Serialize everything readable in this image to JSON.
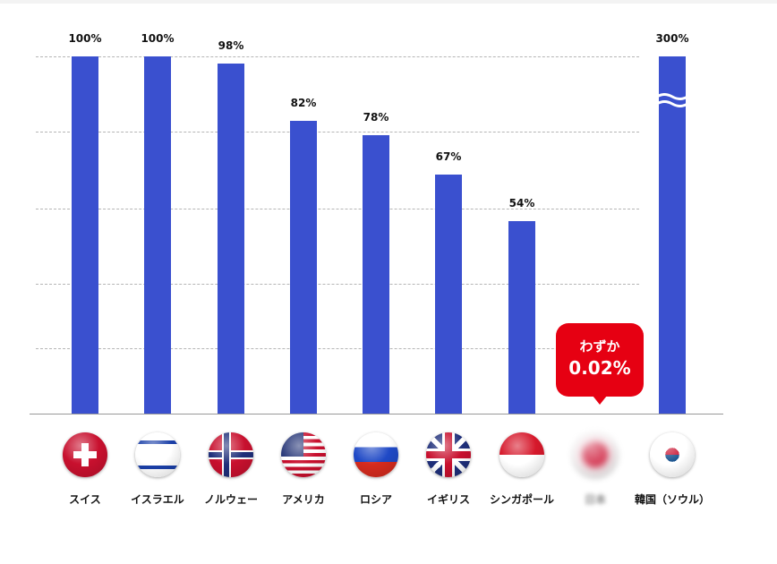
{
  "chart_data": {
    "type": "bar",
    "categories": [
      "スイス",
      "イスラエル",
      "ノルウェー",
      "アメリカ",
      "ロシア",
      "イギリス",
      "シンガポール",
      "日本",
      "韓国（ソウル）"
    ],
    "values": [
      100,
      100,
      98,
      82,
      78,
      67,
      54,
      0.02,
      300
    ],
    "data_labels": [
      "100%",
      "100%",
      "98%",
      "82%",
      "78%",
      "67%",
      "54%",
      "",
      "300%"
    ],
    "axis_break_category": "韓国（ソウル）",
    "ylim": [
      0,
      100
    ],
    "grid": true,
    "bar_color": "#3a50cf",
    "callout": {
      "category": "日本",
      "line1": "わずか",
      "line2": "0.02%",
      "color": "#e60012"
    },
    "flags": [
      "switzerland-flag",
      "israel-flag",
      "norway-flag",
      "usa-flag",
      "russia-flag",
      "uk-flag",
      "singapore-flag",
      "japan-flag-blurred",
      "korea-flag"
    ]
  }
}
